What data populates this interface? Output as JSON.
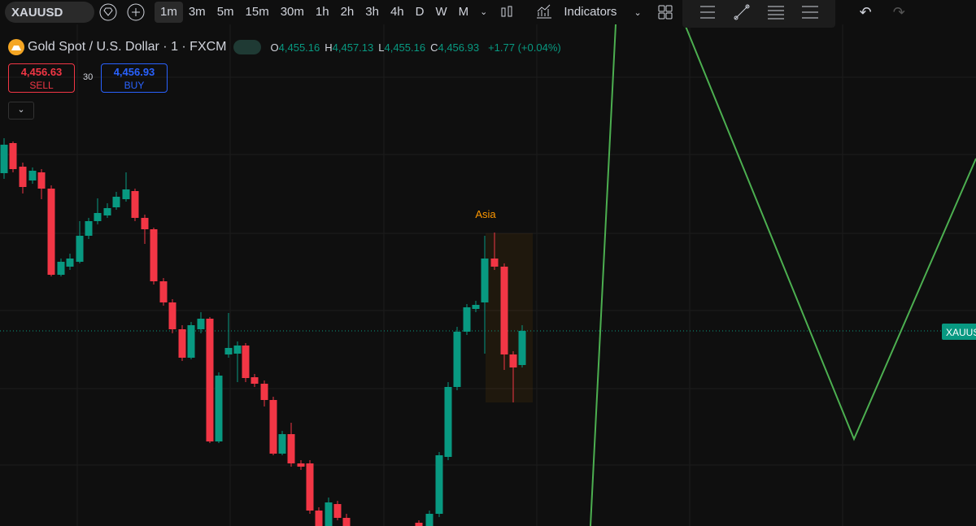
{
  "toolbar": {
    "symbol": "XAUUSD",
    "timeframes": [
      "1m",
      "3m",
      "5m",
      "15m",
      "30m",
      "1h",
      "2h",
      "3h",
      "4h",
      "D",
      "W",
      "M"
    ],
    "indicators": "Indicators"
  },
  "legend": {
    "title": "Gold Spot / U.S. Dollar · 1 · FXCM",
    "ohlc": [
      {
        "label": "O",
        "value": "4,455.16"
      },
      {
        "label": "H",
        "value": "4,457.13"
      },
      {
        "label": "L",
        "value": "4,455.16"
      },
      {
        "label": "C",
        "value": "4,456.93"
      }
    ],
    "change": "+1.77 (+0.04%)"
  },
  "trade": {
    "sell_price": "4,456.63",
    "sell": "SELL",
    "spread": "30",
    "buy_price": "4,456.93",
    "buy": "BUY"
  },
  "chart": {
    "session_label": "Asia",
    "price_label": "XAUUSD"
  }
}
